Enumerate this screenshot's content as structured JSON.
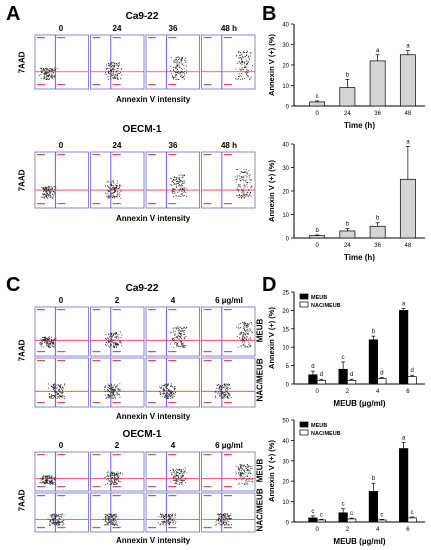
{
  "figure": {
    "panels": {
      "A": {
        "letter": "A",
        "top": {
          "title": "Ca9-22",
          "timepoints": [
            "0",
            "24",
            "36",
            "48 h"
          ],
          "ylabel": "7AAD",
          "xlabel": "Annexin V intensity"
        },
        "bottom": {
          "title": "OECM-1",
          "timepoints": [
            "0",
            "24",
            "36",
            "48 h"
          ],
          "ylabel": "7AAD",
          "xlabel": "Annexin V intensity"
        }
      },
      "B": {
        "letter": "B"
      },
      "C": {
        "letter": "C",
        "top": {
          "title": "Ca9-22",
          "doses": [
            "0",
            "2",
            "4",
            "6 µg/ml"
          ],
          "rows": [
            "MEUB",
            "NAC/MEUB"
          ],
          "ylabel": "7AAD",
          "xlabel": "Annexin V intensity"
        },
        "bottom": {
          "title": "OECM-1",
          "doses": [
            "0",
            "2",
            "4",
            "6 µg/ml"
          ],
          "rows": [
            "MEUB",
            "NAC/MEUB"
          ],
          "ylabel": "7AAD",
          "xlabel": "Annexin V intensity"
        }
      },
      "D": {
        "letter": "D"
      }
    }
  },
  "chart_data": [
    {
      "type": "bar",
      "panel": "B-top",
      "categories": [
        "0",
        "24",
        "36",
        "48"
      ],
      "values": [
        2,
        9,
        22,
        25
      ],
      "errors": [
        0.5,
        4,
        3,
        2
      ],
      "letters": [
        "c",
        "b",
        "a",
        "a"
      ],
      "xlabel": "Time (h)",
      "ylabel": "Annexin V (+) (%)",
      "ylim": [
        0,
        40
      ],
      "yticks": [
        0,
        10,
        20,
        30,
        40
      ],
      "fill": "#d4d4d4"
    },
    {
      "type": "bar",
      "panel": "B-bottom",
      "categories": [
        "0",
        "24",
        "36",
        "48"
      ],
      "values": [
        1,
        3,
        5,
        25
      ],
      "errors": [
        0.3,
        1,
        1.5,
        14
      ],
      "letters": [
        "b",
        "b",
        "b",
        "a"
      ],
      "xlabel": "Time (h)",
      "ylabel": "Annexin V (+) (%)",
      "ylim": [
        0,
        40
      ],
      "yticks": [
        0,
        10,
        20,
        30,
        40
      ],
      "fill": "#d4d4d4"
    },
    {
      "type": "bar",
      "panel": "D-top",
      "categories": [
        "0",
        "2",
        "4",
        "6"
      ],
      "series": [
        {
          "name": "MEUB",
          "values": [
            2.5,
            4,
            12,
            20
          ],
          "errors": [
            1,
            2,
            1,
            0.5
          ],
          "letters": [
            "d",
            "c",
            "b",
            "a"
          ],
          "color": "#000000"
        },
        {
          "name": "NAC/MEUB",
          "values": [
            1,
            1,
            1.5,
            2
          ],
          "errors": [
            0.3,
            0.3,
            0.3,
            0.4
          ],
          "letters": [
            "d",
            "d",
            "d",
            "d"
          ],
          "color": "#ffffff"
        }
      ],
      "xlabel": "MEUB (µg/ml)",
      "ylabel": "Annexin V (+) (%)",
      "ylim": [
        0,
        25
      ],
      "yticks": [
        0,
        5,
        10,
        15,
        20,
        25
      ],
      "legend": "top-left"
    },
    {
      "type": "bar",
      "panel": "D-bottom",
      "categories": [
        "0",
        "2",
        "4",
        "6"
      ],
      "series": [
        {
          "name": "MEUB",
          "values": [
            2,
            4.5,
            15,
            36
          ],
          "errors": [
            1,
            2,
            4,
            3
          ],
          "letters": [
            "c",
            "c",
            "b",
            "a"
          ],
          "color": "#000000"
        },
        {
          "name": "NAC/MEUB",
          "values": [
            1,
            1.5,
            1,
            2
          ],
          "errors": [
            0.3,
            0.4,
            0.3,
            0.5
          ],
          "letters": [
            "c",
            "c",
            "c",
            "c"
          ],
          "color": "#ffffff"
        }
      ],
      "xlabel": "MEUB (µg/ml)",
      "ylabel": "Annexin V (+) (%)",
      "ylim": [
        0,
        50
      ],
      "yticks": [
        0,
        10,
        20,
        30,
        40,
        50
      ],
      "legend": "top-left"
    }
  ]
}
